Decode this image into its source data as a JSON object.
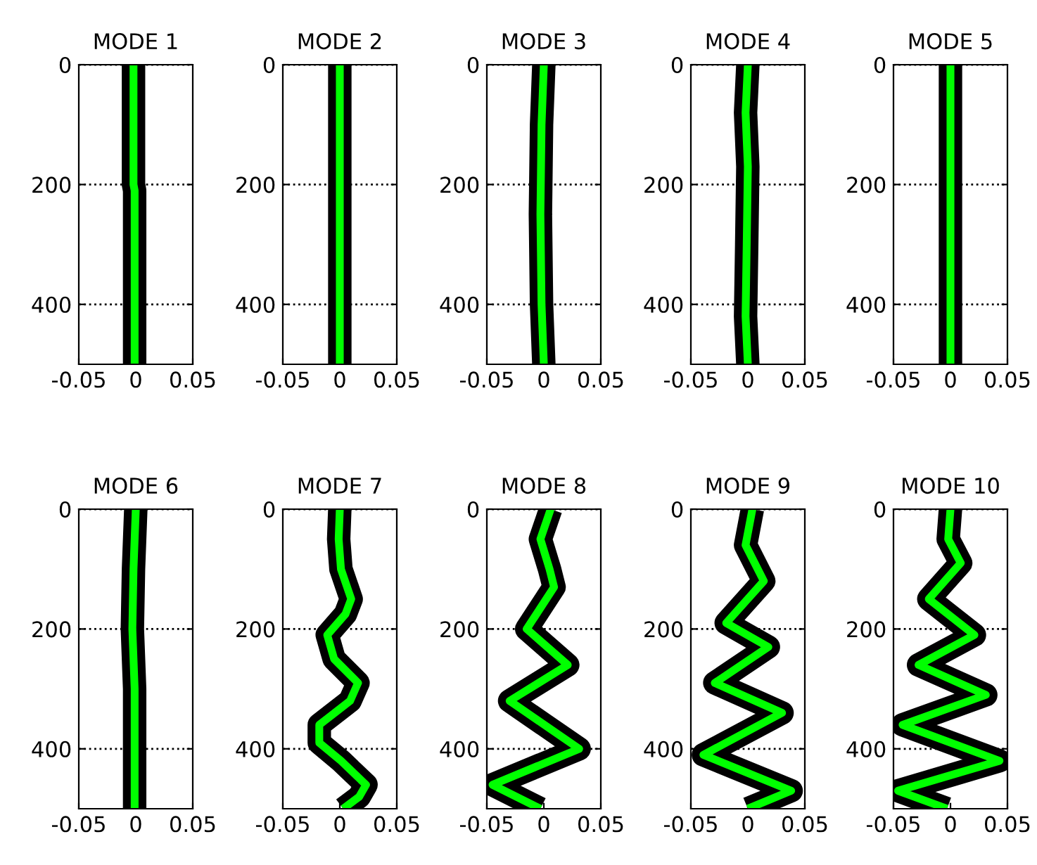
{
  "chart_data": [
    {
      "type": "line",
      "title": "MODE 1",
      "series": [
        {
          "color": "#00ff00",
          "x": [
            -0.002,
            -0.002,
            -0.001,
            -0.001
          ],
          "values": [
            0,
            200,
            210,
            500
          ]
        }
      ],
      "xlim": [
        -0.05,
        0.05
      ],
      "ylim": [
        500,
        0
      ],
      "xticks": [
        -0.05,
        0,
        0.05
      ],
      "yticks": [
        0,
        200,
        400
      ],
      "grid": "y",
      "marker": "none",
      "line_style": "solid"
    },
    {
      "type": "line",
      "title": "MODE 2",
      "series": [
        {
          "color": "#00ff00",
          "x": [
            0,
            0,
            0
          ],
          "values": [
            0,
            250,
            500
          ]
        }
      ],
      "xlim": [
        -0.05,
        0.05
      ],
      "ylim": [
        500,
        0
      ],
      "xticks": [
        -0.05,
        0,
        0.05
      ],
      "yticks": [
        0,
        200,
        400
      ],
      "grid": "y",
      "marker": "none",
      "line_style": "solid"
    },
    {
      "type": "line",
      "title": "MODE 3",
      "series": [
        {
          "color": "#00ff00",
          "x": [
            0,
            -0.002,
            -0.003,
            -0.002,
            0
          ],
          "values": [
            0,
            100,
            250,
            400,
            500
          ]
        }
      ],
      "xlim": [
        -0.05,
        0.05
      ],
      "ylim": [
        500,
        0
      ],
      "xticks": [
        -0.05,
        0,
        0.05
      ],
      "yticks": [
        0,
        200,
        400
      ],
      "grid": "y",
      "marker": "none",
      "line_style": "solid"
    },
    {
      "type": "line",
      "title": "MODE 4",
      "series": [
        {
          "color": "#00ff00",
          "x": [
            0,
            -0.002,
            0,
            -0.001,
            -0.002,
            0
          ],
          "values": [
            0,
            80,
            170,
            300,
            420,
            500
          ]
        }
      ],
      "xlim": [
        -0.05,
        0.05
      ],
      "ylim": [
        500,
        0
      ],
      "xticks": [
        -0.05,
        0,
        0.05
      ],
      "yticks": [
        0,
        200,
        400
      ],
      "grid": "y",
      "marker": "none",
      "line_style": "solid"
    },
    {
      "type": "line",
      "title": "MODE 5",
      "series": [
        {
          "color": "#00ff00",
          "x": [
            0,
            0,
            0
          ],
          "values": [
            0,
            250,
            500
          ]
        }
      ],
      "xlim": [
        -0.05,
        0.05
      ],
      "ylim": [
        500,
        0
      ],
      "xticks": [
        -0.05,
        0,
        0.05
      ],
      "yticks": [
        0,
        200,
        400
      ],
      "grid": "y",
      "marker": "none",
      "line_style": "solid"
    },
    {
      "type": "line",
      "title": "MODE 6",
      "series": [
        {
          "color": "#00ff00",
          "x": [
            0,
            -0.002,
            -0.003,
            -0.001,
            -0.001
          ],
          "values": [
            0,
            100,
            200,
            300,
            500
          ]
        }
      ],
      "xlim": [
        -0.05,
        0.05
      ],
      "ylim": [
        500,
        0
      ],
      "xticks": [
        -0.05,
        0,
        0.05
      ],
      "yticks": [
        0,
        200,
        400
      ],
      "grid": "y",
      "marker": "none",
      "line_style": "solid"
    },
    {
      "type": "line",
      "title": "MODE 7",
      "series": [
        {
          "color": "#00ff00",
          "x": [
            0,
            -0.001,
            0.001,
            0.01,
            0.005,
            -0.011,
            -0.005,
            0.016,
            0.009,
            -0.018,
            -0.018,
            0.001,
            0.023,
            0.017,
            0.003
          ],
          "values": [
            0,
            50,
            100,
            150,
            175,
            210,
            250,
            290,
            320,
            360,
            390,
            420,
            460,
            480,
            500
          ]
        }
      ],
      "xlim": [
        -0.05,
        0.05
      ],
      "ylim": [
        500,
        0
      ],
      "xticks": [
        -0.05,
        0,
        0.05
      ],
      "yticks": [
        0,
        200,
        400
      ],
      "grid": "y",
      "marker": "none",
      "line_style": "solid"
    },
    {
      "type": "line",
      "title": "MODE 8",
      "series": [
        {
          "color": "#00ff00",
          "x": [
            0.006,
            -0.003,
            0.005,
            0.009,
            -0.015,
            0.021,
            -0.03,
            0.031,
            -0.045,
            -0.003
          ],
          "values": [
            0,
            50,
            100,
            130,
            200,
            260,
            320,
            400,
            460,
            500
          ]
        }
      ],
      "xlim": [
        -0.05,
        0.05
      ],
      "ylim": [
        500,
        0
      ],
      "xticks": [
        -0.05,
        0,
        0.05
      ],
      "yticks": [
        0,
        200,
        400
      ],
      "grid": "y",
      "marker": "none",
      "line_style": "solid"
    },
    {
      "type": "line",
      "title": "MODE 9",
      "series": [
        {
          "color": "#00ff00",
          "x": [
            0.004,
            -0.002,
            0.014,
            -0.019,
            0.018,
            -0.029,
            0.03,
            -0.039,
            0.038,
            0
          ],
          "values": [
            0,
            60,
            120,
            190,
            230,
            290,
            340,
            410,
            470,
            500
          ]
        }
      ],
      "xlim": [
        -0.05,
        0.05
      ],
      "ylim": [
        500,
        0
      ],
      "xticks": [
        -0.05,
        0,
        0.05
      ],
      "yticks": [
        0,
        200,
        400
      ],
      "grid": "y",
      "marker": "none",
      "line_style": "solid"
    },
    {
      "type": "line",
      "title": "MODE 10",
      "series": [
        {
          "color": "#00ff00",
          "x": [
            0,
            -0.002,
            0.009,
            -0.019,
            0.021,
            -0.028,
            0.031,
            -0.042,
            0.043,
            -0.046,
            -0.003
          ],
          "values": [
            0,
            50,
            90,
            150,
            210,
            260,
            310,
            360,
            420,
            470,
            500
          ]
        }
      ],
      "xlim": [
        -0.05,
        0.05
      ],
      "ylim": [
        500,
        0
      ],
      "xticks": [
        -0.05,
        0,
        0.05
      ],
      "yticks": [
        0,
        200,
        400
      ],
      "grid": "y",
      "marker": "none",
      "line_style": "solid"
    }
  ]
}
